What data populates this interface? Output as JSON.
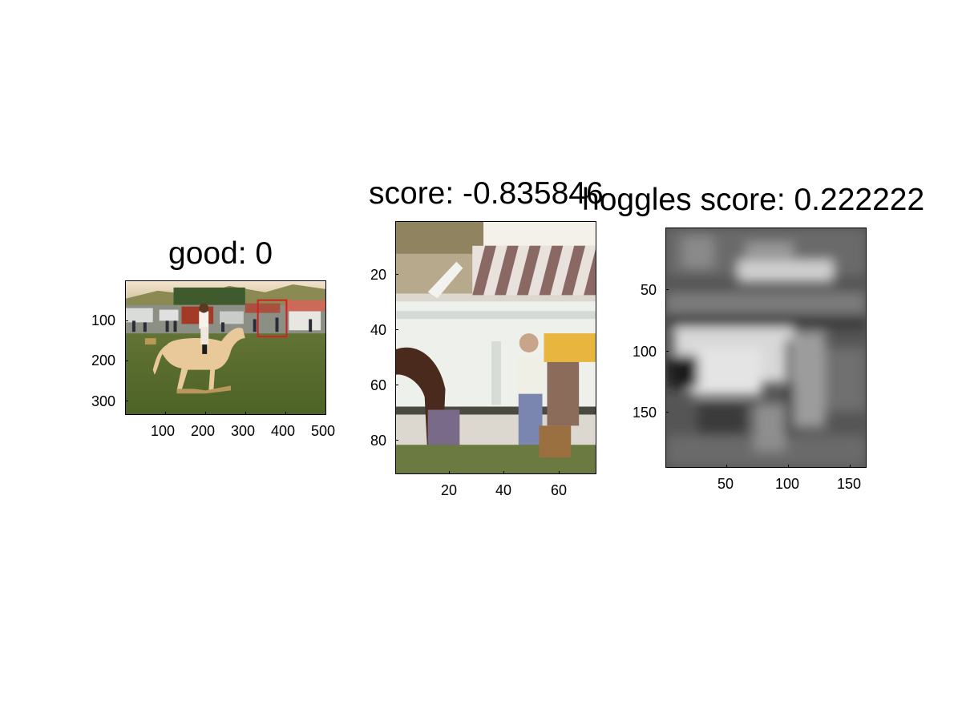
{
  "panels": [
    {
      "id": "original",
      "title": "good: 0",
      "x_ticks": [
        "100",
        "200",
        "300",
        "400",
        "500"
      ],
      "y_ticks": [
        "100",
        "200",
        "300"
      ],
      "image": "horse-rider-showground-photo",
      "annotation": "red-bounding-box"
    },
    {
      "id": "crop",
      "title": "score: -0.835846",
      "x_ticks": [
        "20",
        "40",
        "60"
      ],
      "y_ticks": [
        "20",
        "40",
        "60",
        "80"
      ],
      "image": "cropped-trailer-and-man-photo"
    },
    {
      "id": "hoggles",
      "title": "hoggles score: 0.222222",
      "x_ticks": [
        "50",
        "100",
        "150"
      ],
      "y_ticks": [
        "50",
        "100",
        "150"
      ],
      "image": "grayscale-hoggles-reconstruction"
    }
  ],
  "colors": {
    "box": "#d42020",
    "axes": "#000000",
    "background": "#ffffff"
  }
}
